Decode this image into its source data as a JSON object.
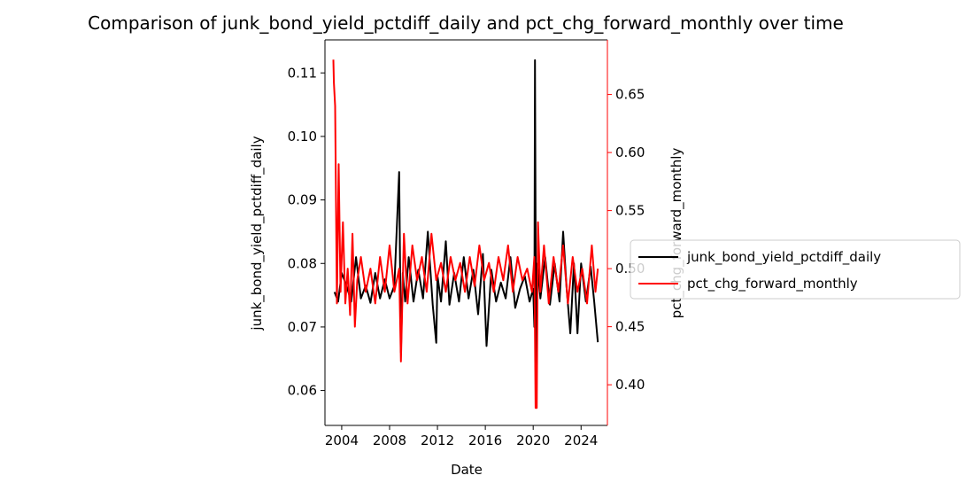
{
  "chart_data": {
    "type": "line",
    "title": "Comparison of junk_bond_yield_pctdiff_daily and pct_chg_forward_monthly over time",
    "xlabel": "Date",
    "ylabel_left": "junk_bond_yield_pctdiff_daily",
    "ylabel_right": "pct_chg_forward_monthly",
    "xlim": [
      2002.6,
      2026.2
    ],
    "ylim_left": [
      0.0545,
      0.1152
    ],
    "ylim_right": [
      0.365,
      0.697
    ],
    "x_ticks": [
      2004,
      2008,
      2012,
      2016,
      2020,
      2024
    ],
    "y_ticks_left": [
      0.06,
      0.07,
      0.08,
      0.09,
      0.1,
      0.11
    ],
    "y_ticks_right": [
      0.4,
      0.45,
      0.5,
      0.55,
      0.6,
      0.65
    ],
    "legend_placement": "right-outside",
    "colors": {
      "left_series": "#000000",
      "right_series": "#ff0000"
    },
    "series": [
      {
        "name": "junk_bond_yield_pctdiff_daily",
        "axis": "left",
        "x": [
          2003.4,
          2003.7,
          2004.0,
          2004.4,
          2004.8,
          2005.2,
          2005.6,
          2006.0,
          2006.4,
          2006.8,
          2007.2,
          2007.6,
          2008.0,
          2008.4,
          2008.8,
          2008.95,
          2009.1,
          2009.3,
          2009.6,
          2010.0,
          2010.4,
          2010.8,
          2011.2,
          2011.6,
          2011.9,
          2012.0,
          2012.3,
          2012.7,
          2013.0,
          2013.4,
          2013.8,
          2014.2,
          2014.6,
          2015.0,
          2015.4,
          2015.8,
          2016.1,
          2016.5,
          2016.9,
          2017.3,
          2017.7,
          2018.1,
          2018.5,
          2018.9,
          2019.3,
          2019.7,
          2020.0,
          2020.1,
          2020.15,
          2020.25,
          2020.35,
          2020.6,
          2021.0,
          2021.4,
          2021.8,
          2022.2,
          2022.5,
          2022.8,
          2023.1,
          2023.4,
          2023.7,
          2024.0,
          2024.4,
          2024.8,
          2025.1,
          2025.4
        ],
        "values": [
          0.0755,
          0.074,
          0.0785,
          0.0765,
          0.074,
          0.081,
          0.0745,
          0.0765,
          0.0738,
          0.0785,
          0.0745,
          0.0775,
          0.0745,
          0.0765,
          0.0944,
          0.066,
          0.0785,
          0.074,
          0.081,
          0.074,
          0.079,
          0.0745,
          0.085,
          0.0735,
          0.0675,
          0.078,
          0.074,
          0.0835,
          0.0735,
          0.0785,
          0.074,
          0.081,
          0.0745,
          0.079,
          0.072,
          0.0815,
          0.067,
          0.079,
          0.074,
          0.077,
          0.0745,
          0.081,
          0.073,
          0.076,
          0.078,
          0.074,
          0.076,
          0.07,
          0.112,
          0.059,
          0.08,
          0.0745,
          0.081,
          0.0735,
          0.08,
          0.074,
          0.085,
          0.076,
          0.069,
          0.08,
          0.069,
          0.08,
          0.074,
          0.0795,
          0.074,
          0.0676
        ]
      },
      {
        "name": "pct_chg_forward_monthly",
        "axis": "right",
        "x": [
          2003.3,
          2003.35,
          2003.45,
          2003.6,
          2003.75,
          2003.9,
          2004.1,
          2004.3,
          2004.5,
          2004.7,
          2004.9,
          2005.1,
          2005.3,
          2005.6,
          2006.0,
          2006.4,
          2006.8,
          2007.2,
          2007.6,
          2008.0,
          2008.4,
          2008.8,
          2008.95,
          2009.2,
          2009.5,
          2009.9,
          2010.3,
          2010.7,
          2011.1,
          2011.5,
          2011.9,
          2012.3,
          2012.7,
          2013.1,
          2013.5,
          2013.9,
          2014.3,
          2014.7,
          2015.1,
          2015.5,
          2015.9,
          2016.3,
          2016.7,
          2017.1,
          2017.5,
          2017.9,
          2018.3,
          2018.7,
          2019.1,
          2019.5,
          2019.9,
          2020.1,
          2020.2,
          2020.3,
          2020.4,
          2020.6,
          2020.9,
          2021.3,
          2021.7,
          2022.1,
          2022.5,
          2022.9,
          2023.3,
          2023.7,
          2024.1,
          2024.5,
          2024.9,
          2025.2,
          2025.4
        ],
        "values": [
          0.68,
          0.66,
          0.64,
          0.47,
          0.59,
          0.48,
          0.54,
          0.47,
          0.5,
          0.46,
          0.53,
          0.45,
          0.49,
          0.51,
          0.48,
          0.5,
          0.47,
          0.51,
          0.48,
          0.52,
          0.48,
          0.5,
          0.42,
          0.53,
          0.47,
          0.52,
          0.49,
          0.51,
          0.48,
          0.53,
          0.49,
          0.505,
          0.48,
          0.51,
          0.49,
          0.505,
          0.48,
          0.51,
          0.485,
          0.52,
          0.49,
          0.505,
          0.48,
          0.51,
          0.49,
          0.52,
          0.48,
          0.51,
          0.49,
          0.5,
          0.48,
          0.51,
          0.38,
          0.38,
          0.54,
          0.48,
          0.52,
          0.47,
          0.51,
          0.48,
          0.52,
          0.47,
          0.51,
          0.48,
          0.5,
          0.47,
          0.52,
          0.48,
          0.5
        ]
      }
    ]
  }
}
